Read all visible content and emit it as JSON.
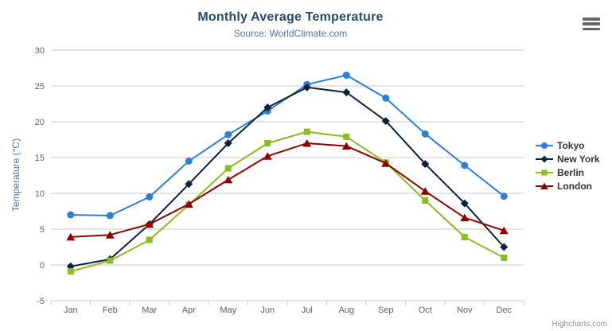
{
  "chart_data": {
    "type": "line",
    "title": "Monthly Average Temperature",
    "subtitle": "Source: WorldClimate.com",
    "categories": [
      "Jan",
      "Feb",
      "Mar",
      "Apr",
      "May",
      "Jun",
      "Jul",
      "Aug",
      "Sep",
      "Oct",
      "Nov",
      "Dec"
    ],
    "xlabel": "",
    "ylabel": "Temperature (°C)",
    "ylim": [
      -5,
      30
    ],
    "yticks": [
      -5,
      0,
      5,
      10,
      15,
      20,
      25,
      30
    ],
    "grid": true,
    "legend_position": "right",
    "series": [
      {
        "name": "Tokyo",
        "color": "#2f7ed8",
        "marker": "circle",
        "values": [
          7.0,
          6.9,
          9.5,
          14.5,
          18.2,
          21.5,
          25.2,
          26.5,
          23.3,
          18.3,
          13.9,
          9.6
        ]
      },
      {
        "name": "New York",
        "color": "#0d233a",
        "marker": "diamond",
        "values": [
          -0.2,
          0.8,
          5.7,
          11.3,
          17.0,
          22.0,
          24.8,
          24.1,
          20.1,
          14.1,
          8.6,
          2.5
        ]
      },
      {
        "name": "Berlin",
        "color": "#8bbc21",
        "marker": "square",
        "values": [
          -0.9,
          0.6,
          3.5,
          8.4,
          13.5,
          17.0,
          18.6,
          17.9,
          14.3,
          9.0,
          3.9,
          1.0
        ]
      },
      {
        "name": "London",
        "color": "#910000",
        "marker": "triangle",
        "values": [
          3.9,
          4.2,
          5.7,
          8.5,
          11.9,
          15.2,
          17.0,
          16.6,
          14.2,
          10.3,
          6.6,
          4.8
        ]
      }
    ]
  },
  "colors": {
    "grid": "#c8c8c8",
    "axis_line": "#c0d0e0",
    "tick_label": "#606060",
    "title": "#274b6d",
    "subtitle": "#4d759e",
    "axis_title": "#4d759e",
    "legend_text": "#333333",
    "menu_icon": "#666666",
    "credit": "#909090"
  },
  "menu": {
    "icon": "hamburger-menu-icon"
  },
  "credit": {
    "label": "Highcharts.com"
  }
}
